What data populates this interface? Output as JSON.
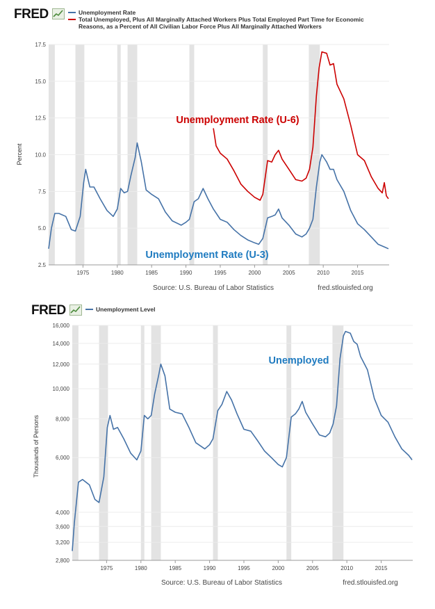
{
  "brand": {
    "logo_text": "FRED"
  },
  "chart_data": [
    {
      "type": "line",
      "legend": [
        {
          "label": "Unemployment Rate",
          "color": "#4572a7"
        },
        {
          "label": "Total Unemployed, Plus All Marginally Attached Workers Plus Total Employed Part Time for Economic Reasons, as a Percent of All Civilian Labor Force Plus All Marginally Attached Workers",
          "color": "#cc0000"
        }
      ],
      "ylabel": "Percent",
      "xlim": [
        1970,
        2019.6
      ],
      "ylim": [
        2.5,
        17.5
      ],
      "yticks": [
        2.5,
        5.0,
        7.5,
        10.0,
        12.5,
        15.0,
        17.5
      ],
      "yticklabels": [
        "2.5",
        "5.0",
        "7.5",
        "10.0",
        "12.5",
        "15.0",
        "17.5"
      ],
      "xticks": [
        1975,
        1980,
        1985,
        1990,
        1995,
        2000,
        2005,
        2010,
        2015
      ],
      "xticklabels": [
        "1975",
        "1980",
        "1985",
        "1990",
        "1995",
        "2000",
        "2005",
        "2010",
        "2015"
      ],
      "recessions": [
        [
          1970.0,
          1970.9
        ],
        [
          1973.9,
          1975.2
        ],
        [
          1980.0,
          1980.5
        ],
        [
          1981.5,
          1982.9
        ],
        [
          1990.5,
          1991.2
        ],
        [
          2001.2,
          2001.9
        ],
        [
          2007.9,
          2009.5
        ]
      ],
      "series": [
        {
          "name": "Unemployment Rate (U-3)",
          "color": "#4572a7",
          "x": [
            1970.0,
            1970.4,
            1970.9,
            1971.5,
            1972.5,
            1973.3,
            1973.9,
            1974.6,
            1975.1,
            1975.4,
            1976.0,
            1976.6,
            1977.5,
            1978.5,
            1979.4,
            1980.0,
            1980.5,
            1981.0,
            1981.5,
            1982.0,
            1982.6,
            1982.9,
            1983.5,
            1984.2,
            1985.0,
            1986.0,
            1987.0,
            1988.0,
            1989.3,
            1990.0,
            1990.5,
            1991.2,
            1991.8,
            1992.5,
            1993.2,
            1994.0,
            1995.0,
            1996.0,
            1997.0,
            1998.0,
            1999.0,
            2000.0,
            2000.6,
            2001.2,
            2001.9,
            2002.5,
            2003.0,
            2003.5,
            2004.0,
            2005.0,
            2006.0,
            2006.9,
            2007.5,
            2008.0,
            2008.5,
            2009.0,
            2009.5,
            2009.8,
            2010.5,
            2011.0,
            2011.5,
            2012.0,
            2013.0,
            2014.0,
            2015.0,
            2016.0,
            2017.0,
            2018.0,
            2019.0,
            2019.5
          ],
          "values": [
            3.6,
            5.0,
            6.0,
            6.0,
            5.8,
            4.9,
            4.8,
            5.8,
            8.1,
            9.0,
            7.8,
            7.8,
            7.0,
            6.2,
            5.8,
            6.3,
            7.7,
            7.4,
            7.5,
            8.6,
            9.8,
            10.8,
            9.5,
            7.6,
            7.3,
            7.0,
            6.1,
            5.5,
            5.2,
            5.4,
            5.6,
            6.8,
            7.0,
            7.7,
            7.0,
            6.3,
            5.6,
            5.4,
            4.9,
            4.5,
            4.2,
            4.0,
            3.9,
            4.3,
            5.7,
            5.8,
            5.9,
            6.3,
            5.7,
            5.2,
            4.6,
            4.4,
            4.6,
            5.0,
            5.6,
            7.8,
            9.5,
            10.0,
            9.5,
            9.0,
            9.0,
            8.3,
            7.5,
            6.2,
            5.3,
            4.9,
            4.4,
            3.9,
            3.7,
            3.6
          ]
        },
        {
          "name": "Unemployment Rate (U-6)",
          "color": "#cc0000",
          "x": [
            1994.0,
            1994.4,
            1995.0,
            1996.0,
            1997.0,
            1998.0,
            1999.0,
            2000.0,
            2000.8,
            2001.2,
            2001.9,
            2002.5,
            2003.0,
            2003.5,
            2004.0,
            2005.0,
            2006.0,
            2006.9,
            2007.5,
            2008.0,
            2008.5,
            2009.0,
            2009.4,
            2009.8,
            2010.5,
            2011.0,
            2011.5,
            2012.0,
            2013.0,
            2014.0,
            2015.0,
            2016.0,
            2017.0,
            2018.0,
            2018.6,
            2018.9,
            2019.2,
            2019.5
          ],
          "values": [
            11.8,
            10.6,
            10.1,
            9.7,
            8.9,
            8.0,
            7.5,
            7.1,
            6.9,
            7.3,
            9.6,
            9.5,
            10.0,
            10.3,
            9.7,
            9.0,
            8.3,
            8.2,
            8.4,
            9.0,
            10.5,
            14.0,
            15.9,
            17.0,
            16.9,
            16.1,
            16.2,
            14.8,
            13.8,
            12.0,
            10.0,
            9.6,
            8.5,
            7.7,
            7.4,
            8.1,
            7.2,
            7.0
          ]
        }
      ],
      "annotations": [
        {
          "text": "Unemployment Rate (U-6)",
          "color": "#cc0000"
        },
        {
          "text": "Unemployment Rate (U-3)",
          "color": "#1f7bc0"
        }
      ],
      "footer": {
        "source": "Source: U.S. Bureau of Labor Statistics",
        "site": "fred.stlouisfed.org"
      }
    },
    {
      "type": "line",
      "legend": [
        {
          "label": "Unemployment Level",
          "color": "#4572a7"
        }
      ],
      "ylabel": "Thousands of Persons",
      "yscale": "log",
      "xlim": [
        1970,
        2019.6
      ],
      "ylim": [
        2800,
        16000
      ],
      "yticks": [
        2800,
        3200,
        3600,
        4000,
        6000,
        8000,
        10000,
        12000,
        14000,
        16000
      ],
      "yticklabels": [
        "2,800",
        "3,200",
        "3,600",
        "4,000",
        "6,000",
        "8,000",
        "10,000",
        "12,000",
        "14,000",
        "16,000"
      ],
      "xticks": [
        1975,
        1980,
        1985,
        1990,
        1995,
        2000,
        2005,
        2010,
        2015
      ],
      "xticklabels": [
        "1975",
        "1980",
        "1985",
        "1990",
        "1995",
        "2000",
        "2005",
        "2010",
        "2015"
      ],
      "recessions": [
        [
          1970.0,
          1970.9
        ],
        [
          1973.9,
          1975.2
        ],
        [
          1980.0,
          1980.5
        ],
        [
          1981.5,
          1982.9
        ],
        [
          1990.5,
          1991.2
        ],
        [
          2001.2,
          2001.9
        ],
        [
          2007.9,
          2009.5
        ]
      ],
      "series": [
        {
          "name": "Unemployed",
          "color": "#4572a7",
          "x": [
            1970.0,
            1970.3,
            1970.9,
            1971.5,
            1972.5,
            1973.3,
            1973.9,
            1974.6,
            1975.1,
            1975.5,
            1976.0,
            1976.6,
            1977.5,
            1978.5,
            1979.4,
            1980.0,
            1980.5,
            1981.0,
            1981.5,
            1982.0,
            1982.6,
            1982.9,
            1983.5,
            1984.2,
            1985.0,
            1986.0,
            1987.0,
            1988.0,
            1989.3,
            1990.0,
            1990.5,
            1991.2,
            1991.8,
            1992.5,
            1993.2,
            1994.0,
            1995.0,
            1996.0,
            1997.0,
            1998.0,
            1999.0,
            2000.0,
            2000.6,
            2001.2,
            2001.9,
            2002.5,
            2003.0,
            2003.5,
            2004.0,
            2005.0,
            2006.0,
            2006.9,
            2007.5,
            2008.0,
            2008.5,
            2009.0,
            2009.5,
            2009.8,
            2010.5,
            2011.0,
            2011.5,
            2012.0,
            2013.0,
            2014.0,
            2015.0,
            2016.0,
            2017.0,
            2018.0,
            2019.0,
            2019.5
          ],
          "values": [
            3000,
            3700,
            5000,
            5100,
            4900,
            4400,
            4300,
            5200,
            7500,
            8200,
            7400,
            7500,
            6900,
            6200,
            5900,
            6300,
            8200,
            8000,
            8200,
            9600,
            11100,
            12000,
            11000,
            8600,
            8400,
            8300,
            7500,
            6700,
            6400,
            6600,
            6900,
            8500,
            8900,
            9800,
            9200,
            8300,
            7400,
            7300,
            6800,
            6300,
            6000,
            5700,
            5600,
            6000,
            8100,
            8300,
            8600,
            9100,
            8400,
            7700,
            7100,
            7000,
            7200,
            7700,
            8800,
            12500,
            14800,
            15300,
            15100,
            14200,
            13900,
            12700,
            11500,
            9300,
            8200,
            7800,
            7000,
            6400,
            6100,
            5900
          ]
        }
      ],
      "annotations": [
        {
          "text": "Unemployed",
          "color": "#1f7bc0"
        }
      ],
      "footer": {
        "source": "Source: U.S. Bureau of Labor Statistics",
        "site": "fred.stlouisfed.org"
      }
    }
  ]
}
